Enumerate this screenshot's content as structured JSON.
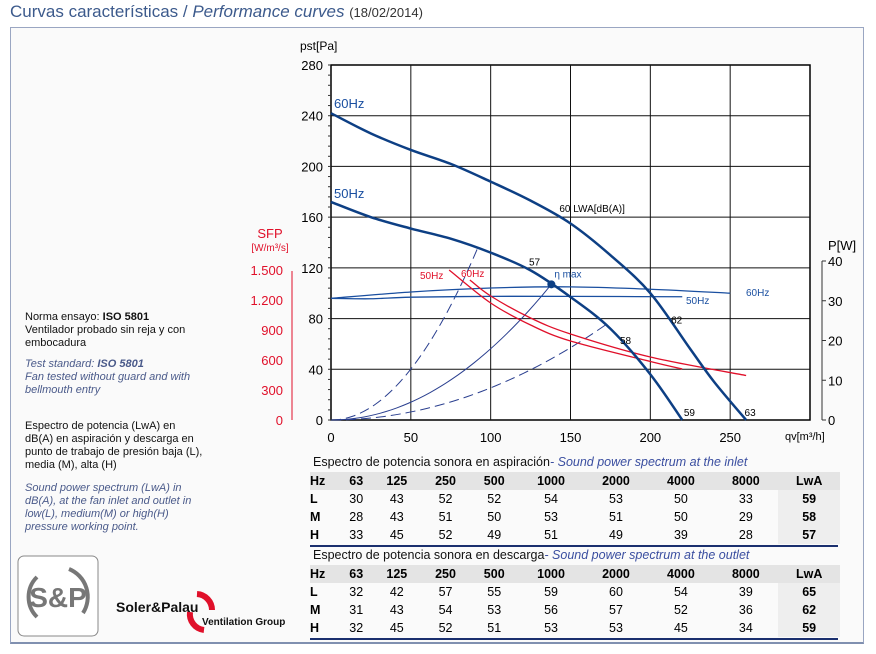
{
  "header": {
    "title_es": "Curvas características / ",
    "title_en": "Performance curves",
    "date": "(18/02/2014)"
  },
  "notes": {
    "norm_es_prefix": "Norma ensayo: ",
    "norm_std": "ISO 5801",
    "norm_es_2": "Ventilador probado sin reja y con embocadura",
    "norm_en_prefix": "Test standard: ",
    "norm_en_2": "Fan tested without guard and with bellmouth entry",
    "spectrum_es": "Espectro de potencia (LwA) en dB(A) en aspiración y descarga en punto de trabajo de presión baja (L), media (M), alta (H)",
    "spectrum_en": "Sound power spectrum (LwA) in dB(A), at the fan inlet and outlet in low(L), medium(M) or high(H) pressure working point."
  },
  "logos": {
    "sp": "S&P",
    "brand": "Soler&Palau",
    "group": "Ventilation Group"
  },
  "chart_data": {
    "type": "line",
    "xlabel": "qv[m³/h]",
    "ylabel": "pst[Pa]",
    "y2label": "P[W]",
    "y3label": "SFP",
    "y3unit": "[W/m³/s]",
    "xlim": [
      0,
      300
    ],
    "ylim": [
      0,
      280
    ],
    "y2lim": [
      0,
      40
    ],
    "y3lim": [
      0,
      1500
    ],
    "xticks": [
      0,
      50,
      100,
      150,
      200,
      250
    ],
    "yticks": [
      0,
      40,
      80,
      120,
      160,
      200,
      240,
      280
    ],
    "y2ticks": [
      0,
      10,
      20,
      30,
      40
    ],
    "y3ticks": [
      "0",
      "300",
      "600",
      "900",
      "1.200",
      "1.500"
    ],
    "y3tickvals": [
      0,
      300,
      600,
      900,
      1200,
      1500
    ],
    "grid": true,
    "colors": {
      "pressure": "#0d3f84",
      "power": "#1a4fa0",
      "sfp": "#e0102a",
      "system": "#2a3f8f"
    },
    "pressure_curves": [
      {
        "name": "60Hz",
        "points": [
          [
            0,
            242
          ],
          [
            25,
            226
          ],
          [
            50,
            213
          ],
          [
            75,
            202
          ],
          [
            100,
            188
          ],
          [
            125,
            173
          ],
          [
            150,
            155
          ],
          [
            175,
            130
          ],
          [
            200,
            100
          ],
          [
            225,
            56
          ],
          [
            240,
            30
          ],
          [
            260,
            0
          ]
        ]
      },
      {
        "name": "50Hz",
        "points": [
          [
            0,
            172
          ],
          [
            25,
            160
          ],
          [
            50,
            151
          ],
          [
            75,
            143
          ],
          [
            100,
            132
          ],
          [
            125,
            118
          ],
          [
            150,
            97
          ],
          [
            175,
            72
          ],
          [
            200,
            36
          ],
          [
            220,
            0
          ]
        ]
      }
    ],
    "power_curves": [
      {
        "name": "60Hz",
        "points": [
          [
            0,
            30.6
          ],
          [
            50,
            32.2
          ],
          [
            100,
            33.2
          ],
          [
            150,
            33.5
          ],
          [
            200,
            32.9
          ],
          [
            250,
            31.9
          ]
        ]
      },
      {
        "name": "50Hz",
        "points": [
          [
            0,
            30.6
          ],
          [
            25,
            30.5
          ],
          [
            50,
            30.9
          ],
          [
            100,
            31.1
          ],
          [
            150,
            31.1
          ],
          [
            220,
            31.0
          ]
        ]
      }
    ],
    "sfp_curves": [
      {
        "name": "50Hz",
        "points": [
          [
            74,
            1500
          ],
          [
            100,
            1170
          ],
          [
            125,
            950
          ],
          [
            150,
            790
          ],
          [
            200,
            585
          ],
          [
            220,
            510
          ]
        ]
      },
      {
        "name": "60Hz",
        "points": [
          [
            87,
            1400
          ],
          [
            100,
            1240
          ],
          [
            125,
            1020
          ],
          [
            150,
            860
          ],
          [
            200,
            630
          ],
          [
            260,
            445
          ]
        ]
      }
    ],
    "system_curves": [
      {
        "end": [
          92,
          136
        ],
        "dashed": true
      },
      {
        "end": [
          138,
          107
        ],
        "dashed": false
      },
      {
        "end": [
          172,
          75
        ],
        "dashed": true
      }
    ],
    "eta_max": {
      "point": [
        138,
        107
      ],
      "label": "η max"
    },
    "sound_labels": [
      {
        "text": "57",
        "at": [
          124,
          122
        ]
      },
      {
        "text": "58",
        "at": [
          181,
          60
        ]
      },
      {
        "text": "59",
        "at": [
          221,
          3
        ]
      },
      {
        "text": "60 LWA[dB(A)]",
        "at": [
          143,
          164
        ]
      },
      {
        "text": "62",
        "at": [
          213,
          76
        ]
      },
      {
        "text": "63",
        "at": [
          259,
          3
        ]
      }
    ]
  },
  "inlet": {
    "caption_es": "Espectro de potencia sonora en aspiración",
    "caption_en": "- Sound power spectrum at the inlet",
    "header": [
      "Hz",
      "63",
      "125",
      "250",
      "500",
      "1000",
      "2000",
      "4000",
      "8000",
      "LwA"
    ],
    "rows": [
      [
        "L",
        "30",
        "43",
        "52",
        "52",
        "54",
        "53",
        "50",
        "33",
        "59"
      ],
      [
        "M",
        "28",
        "43",
        "51",
        "50",
        "53",
        "51",
        "50",
        "29",
        "58"
      ],
      [
        "H",
        "33",
        "45",
        "52",
        "49",
        "51",
        "49",
        "39",
        "28",
        "57"
      ]
    ]
  },
  "outlet": {
    "caption_es": "Espectro de potencia sonora en descarga",
    "caption_en": "- Sound power spectrum at the outlet",
    "header": [
      "Hz",
      "63",
      "125",
      "250",
      "500",
      "1000",
      "2000",
      "4000",
      "8000",
      "LwA"
    ],
    "rows": [
      [
        "L",
        "32",
        "42",
        "57",
        "55",
        "59",
        "60",
        "54",
        "39",
        "65"
      ],
      [
        "M",
        "31",
        "43",
        "54",
        "53",
        "56",
        "57",
        "52",
        "36",
        "62"
      ],
      [
        "H",
        "32",
        "45",
        "52",
        "51",
        "53",
        "53",
        "45",
        "34",
        "59"
      ]
    ]
  }
}
